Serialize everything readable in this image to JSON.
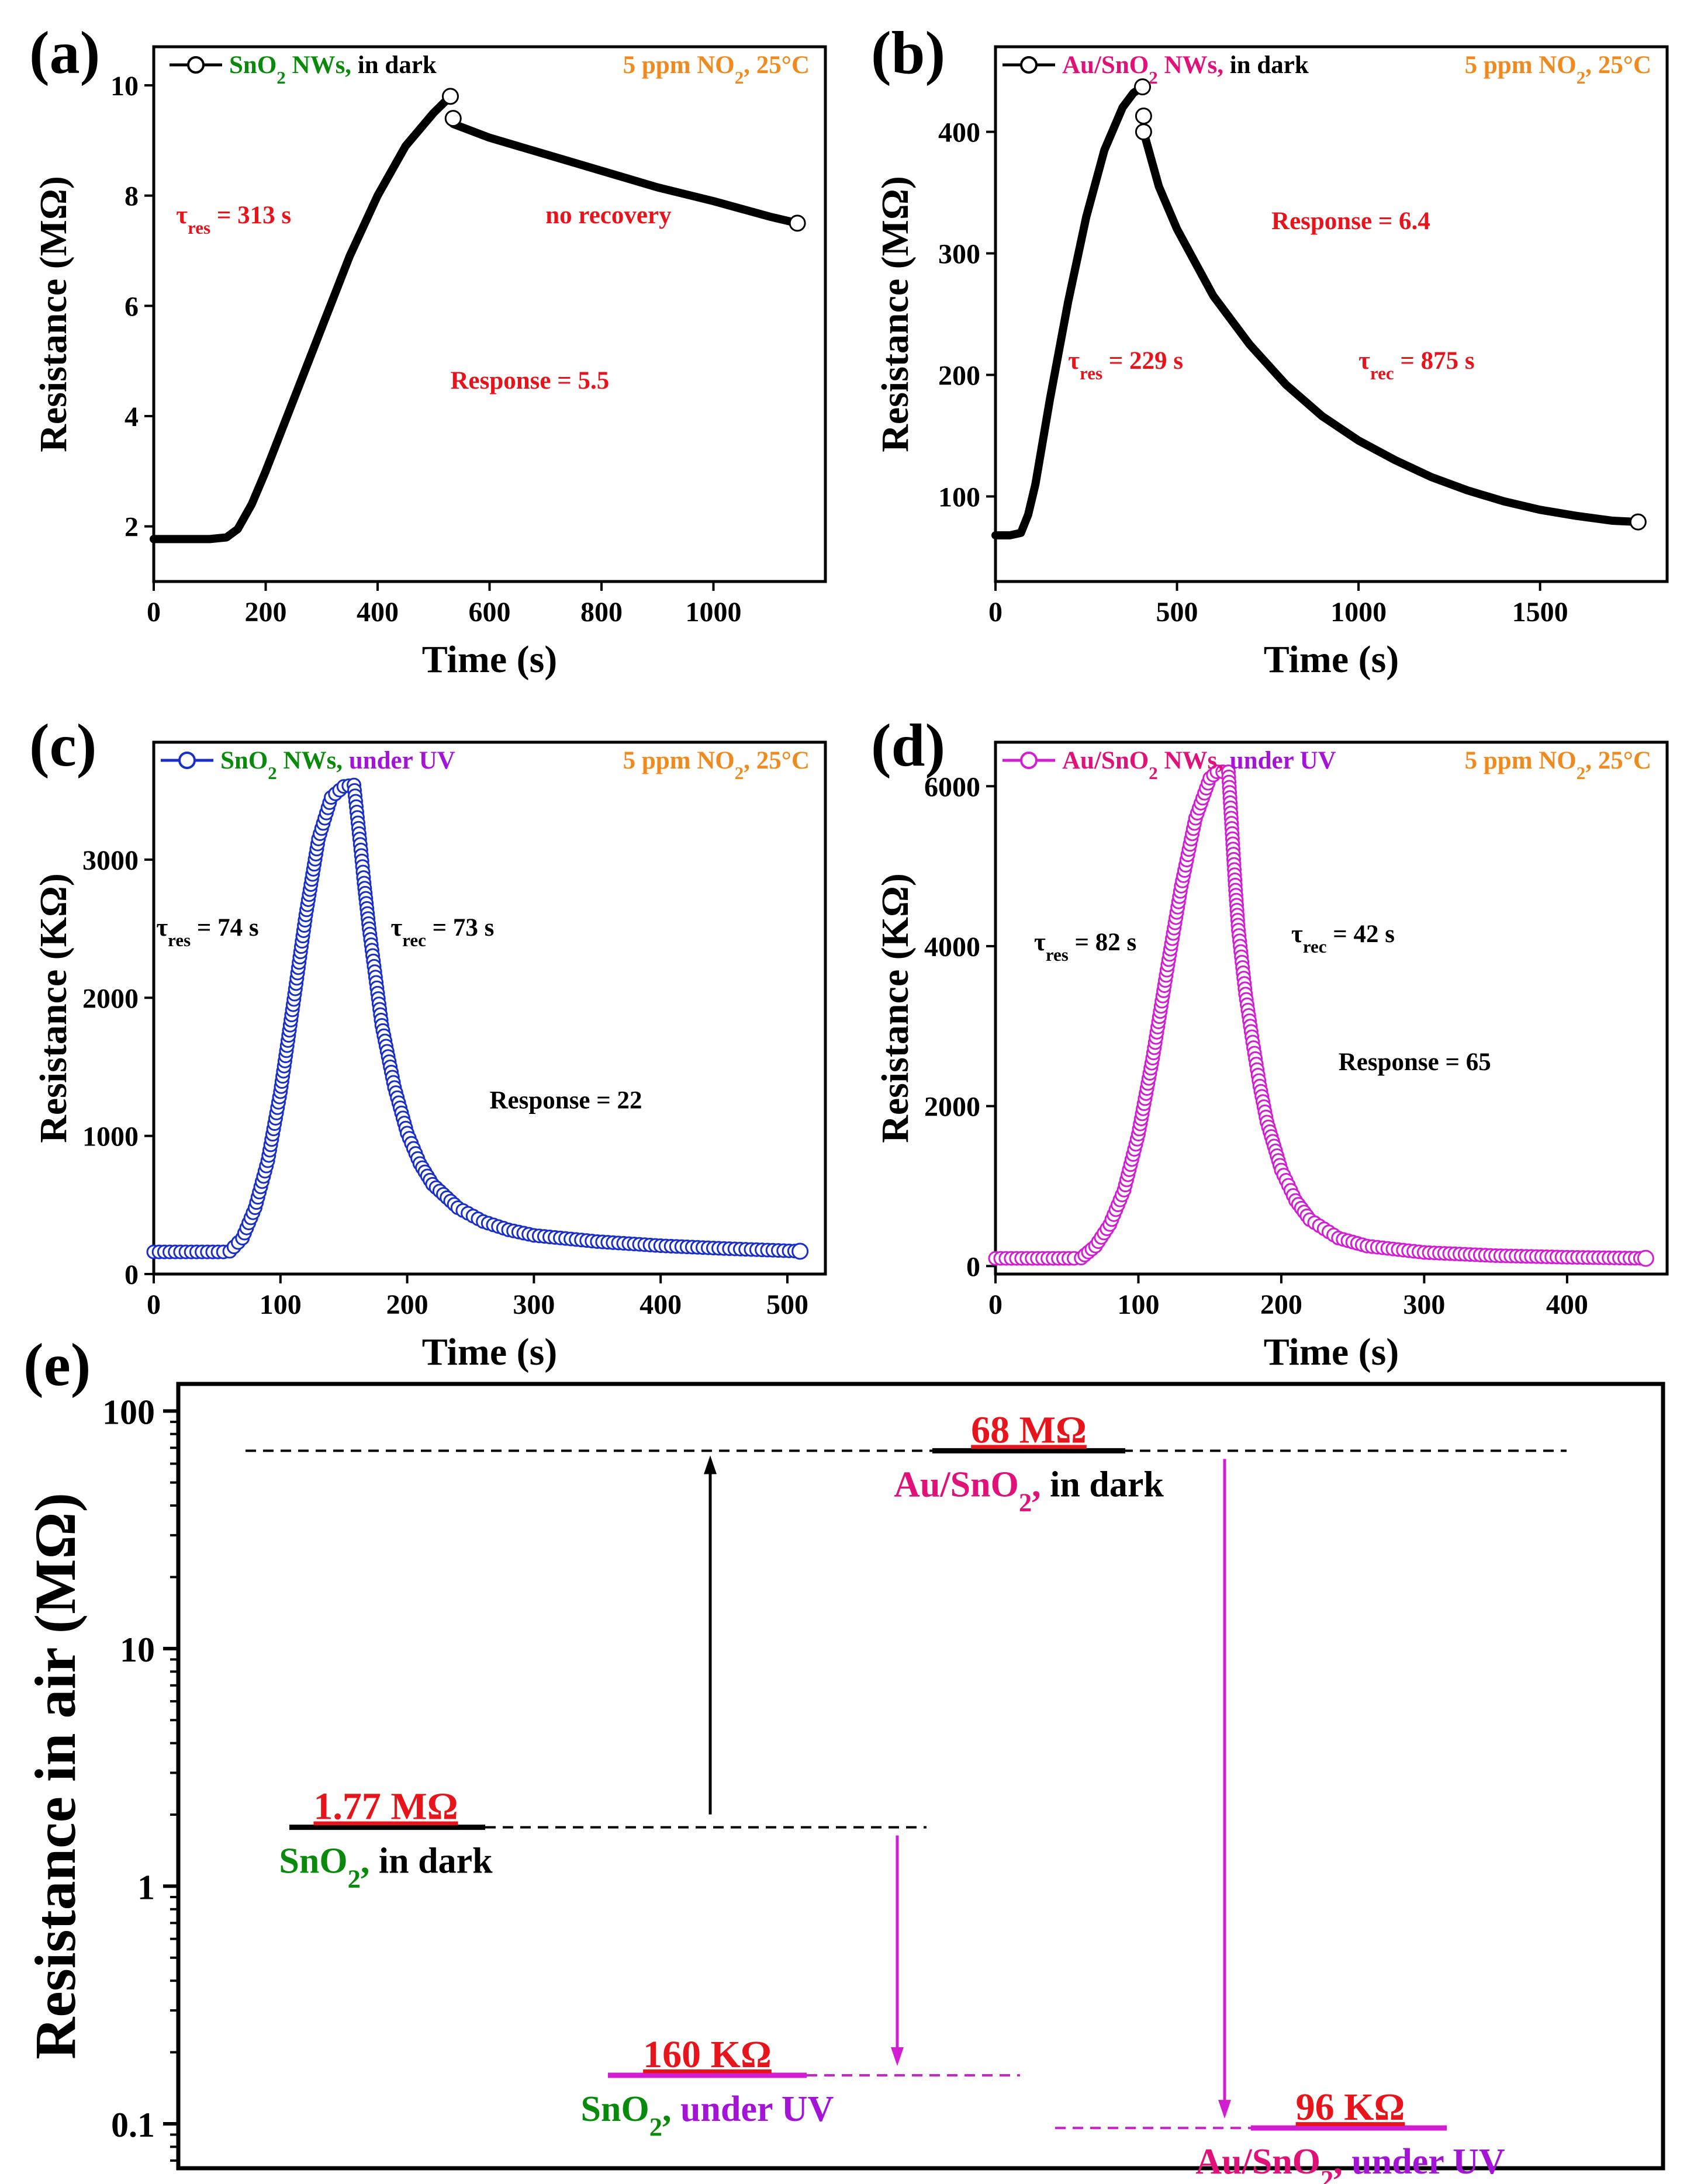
{
  "colors": {
    "black": "#000000",
    "red": "#e8141c",
    "green": "#0a8a0a",
    "orange": "#f08a1e",
    "magenta": "#e0127a",
    "purple": "#a314d6",
    "blue": "#1a2ec8",
    "pink": "#d21ed2"
  },
  "chart_data": [
    {
      "id": "a",
      "panel_label": "(a)",
      "type": "line",
      "title": "",
      "legend_marker": "open-circle",
      "legend_parts": [
        {
          "text": "SnO",
          "color": "green"
        },
        {
          "text": "2",
          "color": "green",
          "sub": true
        },
        {
          "text": " NWs,",
          "color": "green"
        },
        {
          "text": " in dark",
          "color": "black"
        }
      ],
      "condition_parts": [
        {
          "text": "5 ppm NO"
        },
        {
          "text": "2",
          "sub": true
        },
        {
          "text": ", 25°C"
        }
      ],
      "xlabel": "Time (s)",
      "ylabel": "Resistance (MΩ)",
      "xlim": [
        0,
        1200
      ],
      "ylim": [
        1,
        10.7
      ],
      "xticks": [
        0,
        200,
        400,
        600,
        800,
        1000
      ],
      "yticks": [
        2,
        4,
        6,
        8,
        10
      ],
      "series_color": "black",
      "series": [
        {
          "name": "SnO2 NWs, in dark",
          "x": [
            0,
            50,
            100,
            130,
            150,
            175,
            200,
            250,
            300,
            350,
            400,
            450,
            500,
            530
          ],
          "y": [
            1.77,
            1.77,
            1.77,
            1.8,
            1.95,
            2.4,
            3.0,
            4.3,
            5.6,
            6.9,
            8.0,
            8.9,
            9.5,
            9.8
          ]
        },
        {
          "name": "SnO2 NWs, in dark (recovery)",
          "x": [
            535,
            600,
            700,
            800,
            900,
            1000,
            1100,
            1150
          ],
          "y": [
            9.3,
            9.05,
            8.75,
            8.45,
            8.15,
            7.9,
            7.62,
            7.5
          ]
        }
      ],
      "open_markers": [
        [
          530,
          9.8
        ],
        [
          535,
          9.4
        ],
        [
          1150,
          7.5
        ]
      ],
      "annotations": [
        {
          "parts": [
            {
              "text": "τ"
            },
            {
              "text": "res",
              "sub": true
            },
            {
              "text": " = 313 s"
            }
          ],
          "color": "red",
          "x": 40,
          "y": 7.5
        },
        {
          "parts": [
            {
              "text": "no recovery"
            }
          ],
          "color": "red",
          "x": 700,
          "y": 7.5
        },
        {
          "parts": [
            {
              "text": "Response = 5.5"
            }
          ],
          "color": "red",
          "x": 530,
          "y": 4.5
        }
      ]
    },
    {
      "id": "b",
      "panel_label": "(b)",
      "type": "line",
      "title": "",
      "legend_marker": "open-circle",
      "legend_parts": [
        {
          "text": "Au/SnO",
          "color": "magenta"
        },
        {
          "text": "2",
          "color": "magenta",
          "sub": true
        },
        {
          "text": " NWs,",
          "color": "magenta"
        },
        {
          "text": " in dark",
          "color": "black"
        }
      ],
      "condition_parts": [
        {
          "text": "5 ppm NO"
        },
        {
          "text": "2",
          "sub": true
        },
        {
          "text": ", 25°C"
        }
      ],
      "xlabel": "Time (s)",
      "ylabel": "Resistance (MΩ)",
      "xlim": [
        0,
        1850
      ],
      "ylim": [
        30,
        470
      ],
      "xticks": [
        0,
        500,
        1000,
        1500
      ],
      "yticks": [
        100,
        200,
        300,
        400
      ],
      "series_color": "black",
      "series": [
        {
          "name": "Au/SnO2 NWs, in dark",
          "x": [
            0,
            40,
            70,
            90,
            110,
            130,
            150,
            175,
            200,
            250,
            300,
            350,
            380,
            405
          ],
          "y": [
            68,
            68,
            70,
            85,
            110,
            145,
            180,
            220,
            260,
            330,
            385,
            420,
            432,
            437
          ]
        },
        {
          "name": "Au/SnO2 NWs, in dark (recovery)",
          "x": [
            408,
            450,
            500,
            600,
            700,
            800,
            900,
            1000,
            1100,
            1200,
            1300,
            1400,
            1500,
            1600,
            1700,
            1770
          ],
          "y": [
            400,
            355,
            320,
            265,
            225,
            192,
            166,
            146,
            130,
            116,
            105,
            96,
            89,
            84,
            80,
            79
          ]
        }
      ],
      "open_markers": [
        [
          405,
          437
        ],
        [
          408,
          413
        ],
        [
          408,
          400
        ],
        [
          1770,
          79
        ]
      ],
      "annotations": [
        {
          "parts": [
            {
              "text": "Response = 6.4"
            }
          ],
          "color": "red",
          "x": 760,
          "y": 320
        },
        {
          "parts": [
            {
              "text": "τ"
            },
            {
              "text": "res",
              "sub": true
            },
            {
              "text": " = 229 s"
            }
          ],
          "color": "red",
          "x": 200,
          "y": 205
        },
        {
          "parts": [
            {
              "text": "τ"
            },
            {
              "text": "rec",
              "sub": true
            },
            {
              "text": " = 875 s"
            }
          ],
          "color": "red",
          "x": 1000,
          "y": 205
        }
      ]
    },
    {
      "id": "c",
      "panel_label": "(c)",
      "type": "line",
      "title": "",
      "legend_marker": "open-circle",
      "legend_parts": [
        {
          "text": "SnO",
          "color": "green"
        },
        {
          "text": "2",
          "color": "green",
          "sub": true
        },
        {
          "text": " NWs,",
          "color": "green"
        },
        {
          "text": " under UV",
          "color": "purple"
        }
      ],
      "condition_parts": [
        {
          "text": "5 ppm NO"
        },
        {
          "text": "2",
          "sub": true
        },
        {
          "text": ", 25°C"
        }
      ],
      "xlabel": "Time (s)",
      "ylabel": "Resistance (KΩ)",
      "xlim": [
        0,
        530
      ],
      "ylim": [
        0,
        3850
      ],
      "xticks": [
        0,
        100,
        200,
        300,
        400,
        500
      ],
      "yticks": [
        0,
        1000,
        2000,
        3000
      ],
      "series_color": "blue",
      "series": [
        {
          "name": "SnO2 NWs, under UV",
          "x": [
            0,
            55,
            60,
            70,
            80,
            90,
            100,
            110,
            120,
            130,
            140,
            150,
            158,
            163,
            166,
            170,
            175,
            180,
            190,
            200,
            210,
            220,
            240,
            260,
            280,
            300,
            350,
            400,
            450,
            510
          ],
          "y": [
            160,
            160,
            165,
            260,
            480,
            820,
            1320,
            1950,
            2600,
            3150,
            3450,
            3530,
            3540,
            3110,
            2830,
            2500,
            2150,
            1800,
            1350,
            1020,
            800,
            650,
            480,
            380,
            320,
            280,
            235,
            205,
            185,
            165
          ]
        }
      ],
      "marker_series": true,
      "annotations": [
        {
          "parts": [
            {
              "text": "τ"
            },
            {
              "text": "res",
              "sub": true
            },
            {
              "text": " = 74 s"
            }
          ],
          "color": "black",
          "x": 2,
          "y": 2450
        },
        {
          "parts": [
            {
              "text": "τ"
            },
            {
              "text": "rec",
              "sub": true
            },
            {
              "text": " = 73 s"
            }
          ],
          "color": "black",
          "x": 187,
          "y": 2450
        },
        {
          "parts": [
            {
              "text": "Response = 22"
            }
          ],
          "color": "black",
          "x": 265,
          "y": 1200
        }
      ]
    },
    {
      "id": "d",
      "panel_label": "(d)",
      "type": "line",
      "title": "",
      "legend_marker": "open-circle",
      "legend_parts": [
        {
          "text": "Au/SnO",
          "color": "magenta"
        },
        {
          "text": "2",
          "color": "magenta",
          "sub": true
        },
        {
          "text": " NWs,",
          "color": "magenta"
        },
        {
          "text": " under UV",
          "color": "purple"
        }
      ],
      "condition_parts": [
        {
          "text": "5 ppm NO"
        },
        {
          "text": "2",
          "sub": true
        },
        {
          "text": ", 25°C"
        }
      ],
      "xlabel": "Time (s)",
      "ylabel": "Resistance (KΩ)",
      "xlim": [
        0,
        470
      ],
      "ylim": [
        -100,
        6550
      ],
      "xticks": [
        0,
        100,
        200,
        300,
        400
      ],
      "yticks": [
        0,
        2000,
        4000,
        6000
      ],
      "series_color": "pink",
      "series": [
        {
          "name": "Au/SnO2 NWs, under UV",
          "x": [
            0,
            55,
            60,
            70,
            80,
            90,
            100,
            110,
            120,
            130,
            140,
            150,
            155,
            163,
            168,
            170,
            175,
            180,
            185,
            190,
            200,
            210,
            220,
            240,
            260,
            300,
            350,
            400,
            455
          ],
          "y": [
            96,
            96,
            100,
            250,
            520,
            950,
            1650,
            2600,
            3700,
            4750,
            5600,
            6100,
            6180,
            6180,
            4700,
            4200,
            3400,
            2800,
            2250,
            1800,
            1200,
            820,
            580,
            350,
            250,
            170,
            130,
            110,
            96
          ]
        }
      ],
      "marker_series": true,
      "annotations": [
        {
          "parts": [
            {
              "text": "τ"
            },
            {
              "text": "res",
              "sub": true
            },
            {
              "text": " = 82 s"
            }
          ],
          "color": "black",
          "x": 27,
          "y": 3950
        },
        {
          "parts": [
            {
              "text": "τ"
            },
            {
              "text": "rec",
              "sub": true
            },
            {
              "text": " = 42 s"
            }
          ],
          "color": "black",
          "x": 207,
          "y": 4050
        },
        {
          "parts": [
            {
              "text": "Response = 65"
            }
          ],
          "color": "black",
          "x": 240,
          "y": 2450
        }
      ]
    },
    {
      "id": "e",
      "panel_label": "(e)",
      "type": "level-diagram",
      "title": "",
      "ylabel": "Resistance in air (MΩ)",
      "yscale": "log",
      "ylim": [
        0.065,
        130
      ],
      "yticks": [
        0.1,
        1,
        10,
        100
      ],
      "ytick_labels": [
        "0.1",
        "1",
        "10",
        "100"
      ],
      "levels": [
        {
          "key": "snO2_dark",
          "label": "1.77 MΩ",
          "value": 1.77,
          "caption_parts": [
            {
              "text": "SnO",
              "color": "green"
            },
            {
              "text": "2",
              "color": "green",
              "sub": true
            },
            {
              "text": ",",
              "color": "green"
            },
            {
              "text": " in dark",
              "color": "black"
            }
          ],
          "bar_color": "black"
        },
        {
          "key": "snO2_uv",
          "label": "160 KΩ",
          "value": 0.16,
          "caption_parts": [
            {
              "text": "SnO",
              "color": "green"
            },
            {
              "text": "2",
              "color": "green",
              "sub": true
            },
            {
              "text": ",",
              "color": "green"
            },
            {
              "text": " under UV",
              "color": "purple"
            }
          ],
          "bar_color": "pink"
        },
        {
          "key": "au_dark",
          "label": "68 MΩ",
          "value": 68,
          "caption_parts": [
            {
              "text": "Au/SnO",
              "color": "magenta"
            },
            {
              "text": "2",
              "color": "magenta",
              "sub": true
            },
            {
              "text": ",",
              "color": "magenta"
            },
            {
              "text": " in dark",
              "color": "black"
            }
          ],
          "bar_color": "black"
        },
        {
          "key": "au_uv",
          "label": "96 KΩ",
          "value": 0.096,
          "caption_parts": [
            {
              "text": "Au/SnO",
              "color": "magenta"
            },
            {
              "text": "2",
              "color": "magenta",
              "sub": true
            },
            {
              "text": ",",
              "color": "magenta"
            },
            {
              "text": " under UV",
              "color": "purple"
            }
          ],
          "bar_color": "pink"
        }
      ],
      "arrows": [
        {
          "from": "snO2_dark",
          "to": "au_dark",
          "color": "black"
        },
        {
          "from": "snO2_dark",
          "to": "snO2_uv",
          "color": "pink"
        },
        {
          "from": "au_dark",
          "to": "au_uv",
          "color": "pink"
        }
      ]
    }
  ]
}
